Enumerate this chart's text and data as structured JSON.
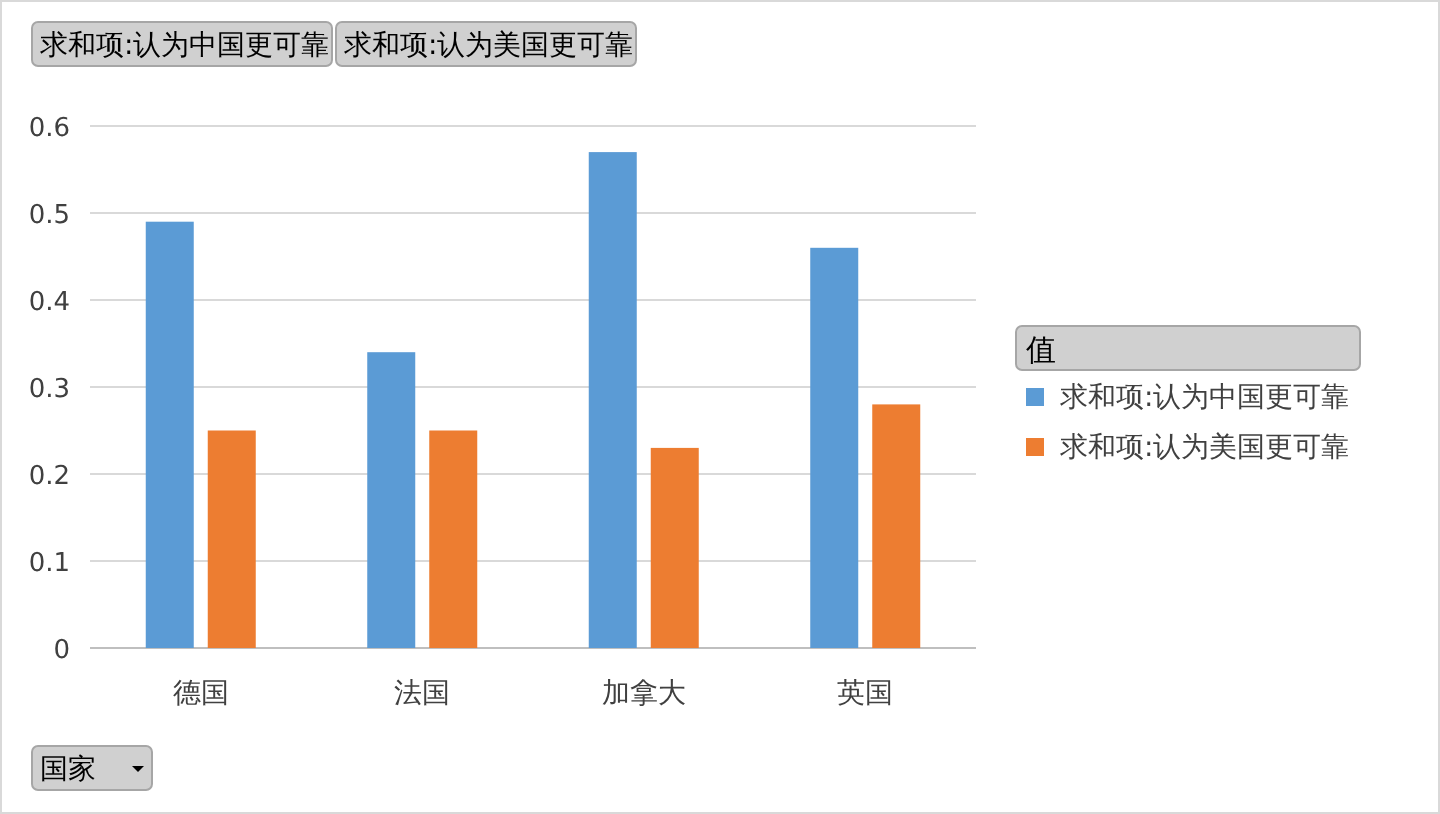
{
  "chart_data": {
    "type": "bar",
    "categories": [
      "德国",
      "法国",
      "加拿大",
      "英国"
    ],
    "series": [
      {
        "name": "求和项:认为中国更可靠",
        "color": "#5b9bd5",
        "values": [
          0.49,
          0.34,
          0.57,
          0.46
        ]
      },
      {
        "name": "求和项:认为美国更可靠",
        "color": "#ed7d31",
        "values": [
          0.25,
          0.25,
          0.23,
          0.28
        ]
      }
    ],
    "ylim": [
      0,
      0.6
    ],
    "yticks": [
      0,
      0.1,
      0.2,
      0.3,
      0.4,
      0.5,
      0.6
    ],
    "grid": "y",
    "legend": "right",
    "legend_title": "值",
    "xlabel": "国家",
    "annotations": [
      "求和项:认为中国更可靠",
      "求和项:认为美国更可靠"
    ]
  }
}
